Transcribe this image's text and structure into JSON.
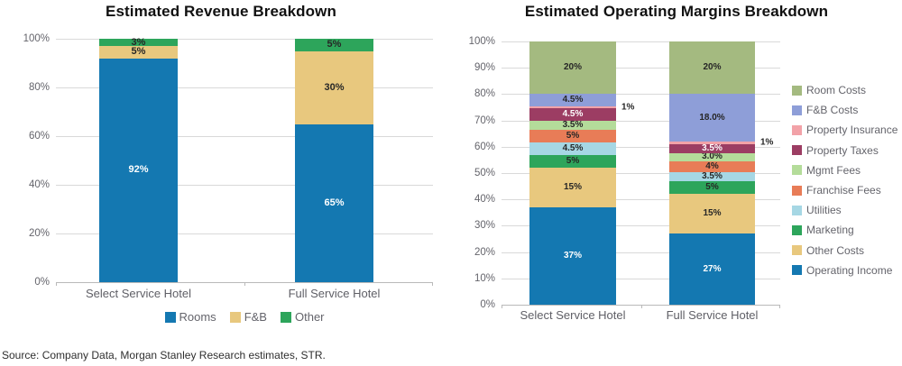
{
  "source": "Source: Company Data, Morgan Stanley Research estimates, STR.",
  "colors": {
    "blue": "#1478b1",
    "tan": "#e8c87e",
    "green": "#2da55b",
    "olive": "#a4ba80",
    "periwinkle": "#8e9ed8",
    "pink": "#f2a2a8",
    "maroon": "#9c3d63",
    "light_green": "#b4dc9a",
    "orange": "#e87c57",
    "light_blue": "#a6d7e4"
  },
  "chart_data": [
    {
      "type": "bar",
      "stacked": true,
      "title": "Estimated Revenue Breakdown",
      "categories": [
        "Select Service Hotel",
        "Full Service Hotel"
      ],
      "y_axis": {
        "min": 0,
        "max": 100,
        "step": 20,
        "tick_labels": [
          "0%",
          "20%",
          "40%",
          "60%",
          "80%",
          "100%"
        ]
      },
      "grid": true,
      "series": [
        {
          "name": "Rooms",
          "color": "#1478b1",
          "label_color": "#ffffff",
          "values": [
            92,
            65
          ],
          "labels": [
            "92%",
            "65%"
          ]
        },
        {
          "name": "F&B",
          "color": "#e8c87e",
          "label_color": "#262626",
          "values": [
            5,
            30
          ],
          "labels": [
            "5%",
            "30%"
          ]
        },
        {
          "name": "Other",
          "color": "#2da55b",
          "label_color": "#262626",
          "values": [
            3,
            5
          ],
          "labels": [
            "3%",
            "5%"
          ]
        }
      ],
      "legend": {
        "position": "bottom",
        "items": [
          "Rooms",
          "F&B",
          "Other"
        ]
      }
    },
    {
      "type": "bar",
      "stacked": true,
      "title": "Estimated Operating Margins Breakdown",
      "categories": [
        "Select Service Hotel",
        "Full Service Hotel"
      ],
      "y_axis": {
        "min": 0,
        "max": 100,
        "step": 10,
        "tick_labels": [
          "0%",
          "10%",
          "20%",
          "30%",
          "40%",
          "50%",
          "60%",
          "70%",
          "80%",
          "90%",
          "100%"
        ]
      },
      "grid": true,
      "series": [
        {
          "name": "Operating Income",
          "color": "#1478b1",
          "label_color": "#ffffff",
          "values": [
            37,
            27
          ],
          "labels": [
            "37%",
            "27%"
          ]
        },
        {
          "name": "Other Costs",
          "color": "#e8c87e",
          "label_color": "#262626",
          "values": [
            15,
            15
          ],
          "labels": [
            "15%",
            "15%"
          ]
        },
        {
          "name": "Marketing",
          "color": "#2da55b",
          "label_color": "#262626",
          "values": [
            5,
            5
          ],
          "labels": [
            "5%",
            "5%"
          ]
        },
        {
          "name": "Utilities",
          "color": "#a6d7e4",
          "label_color": "#262626",
          "values": [
            4.5,
            3.5
          ],
          "labels": [
            "4.5%",
            "3.5%"
          ]
        },
        {
          "name": "Franchise Fees",
          "color": "#e87c57",
          "label_color": "#262626",
          "values": [
            5,
            4
          ],
          "labels": [
            "5%",
            "4%"
          ]
        },
        {
          "name": "Mgmt Fees",
          "color": "#b4dc9a",
          "label_color": "#262626",
          "values": [
            3.5,
            3
          ],
          "labels": [
            "3.5%",
            "3.0%"
          ]
        },
        {
          "name": "Property Taxes",
          "color": "#9c3d63",
          "label_color": "#ffffff",
          "values": [
            4.5,
            3.5
          ],
          "labels": [
            "4.5%",
            "3.5%"
          ]
        },
        {
          "name": "Property Insurance",
          "color": "#f2a2a8",
          "label_color": "#262626",
          "values": [
            1,
            1
          ],
          "labels": [
            "1%",
            "1%"
          ],
          "labels_outside": true
        },
        {
          "name": "F&B Costs",
          "color": "#8e9ed8",
          "label_color": "#262626",
          "values": [
            4.5,
            18
          ],
          "labels": [
            "4.5%",
            "18.0%"
          ]
        },
        {
          "name": "Room Costs",
          "color": "#a4ba80",
          "label_color": "#262626",
          "values": [
            20,
            20
          ],
          "labels": [
            "20%",
            "20%"
          ]
        }
      ],
      "legend": {
        "position": "right",
        "items": [
          "Room Costs",
          "F&B Costs",
          "Property Insurance",
          "Property Taxes",
          "Mgmt Fees",
          "Franchise Fees",
          "Utilities",
          "Marketing",
          "Other Costs",
          "Operating Income"
        ]
      }
    }
  ]
}
